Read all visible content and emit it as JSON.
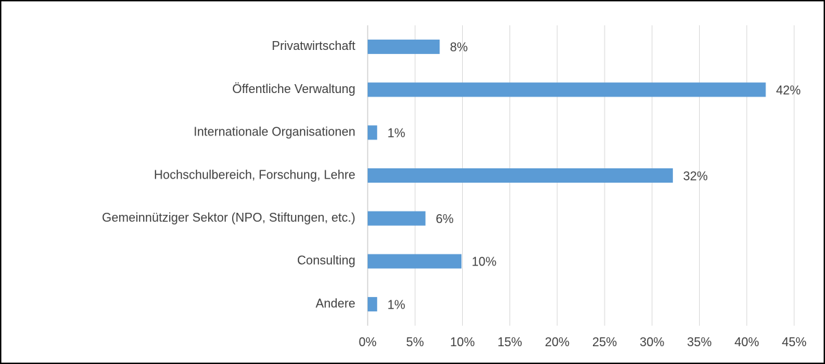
{
  "chart_data": {
    "type": "bar",
    "orientation": "horizontal",
    "categories": [
      "Privatwirtschaft",
      "Öffentliche Verwaltung",
      "Internationale Organisationen",
      "Hochschulbereich, Forschung, Lehre",
      "Gemeinnütziger Sektor (NPO, Stiftungen, etc.)",
      "Consulting",
      "Andere"
    ],
    "values": [
      7.6,
      42.0,
      1.0,
      32.2,
      6.1,
      9.9,
      1.0
    ],
    "value_labels": [
      "8%",
      "42%",
      "1%",
      "32%",
      "6%",
      "10%",
      "1%"
    ],
    "color": "#5b9bd5",
    "xlim": [
      0,
      45
    ],
    "xticks": [
      {
        "value": 0,
        "label": "0%"
      },
      {
        "value": 5,
        "label": "5%"
      },
      {
        "value": 10,
        "label": "10%"
      },
      {
        "value": 15,
        "label": "15%"
      },
      {
        "value": 20,
        "label": "20%"
      },
      {
        "value": 25,
        "label": "25%"
      },
      {
        "value": 30,
        "label": "30%"
      },
      {
        "value": 35,
        "label": "35%"
      },
      {
        "value": 40,
        "label": "40%"
      },
      {
        "value": 45,
        "label": "45%"
      }
    ],
    "grid": true
  }
}
